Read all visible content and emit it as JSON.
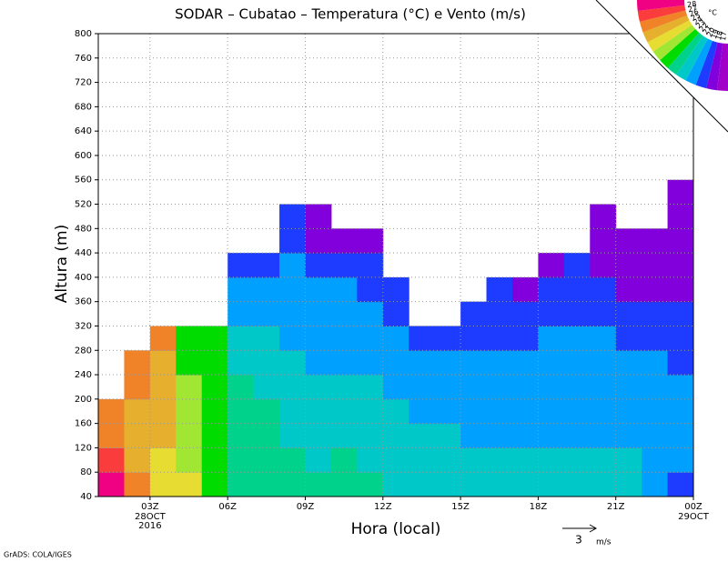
{
  "chart_data": {
    "type": "contour",
    "title": "SODAR – Cubatao – Temperatura (°C) e Vento (m/s)",
    "xlabel": "Hora (local)",
    "ylabel": "Altura (m)",
    "xlim": [
      1,
      24
    ],
    "ylim": [
      40,
      800
    ],
    "xticks": [
      {
        "value": 3,
        "label": "03Z"
      },
      {
        "value": 6,
        "label": "06Z"
      },
      {
        "value": 9,
        "label": "09Z"
      },
      {
        "value": 12,
        "label": "12Z"
      },
      {
        "value": 15,
        "label": "15Z"
      },
      {
        "value": 18,
        "label": "18Z"
      },
      {
        "value": 21,
        "label": "21Z"
      },
      {
        "value": 24,
        "label": "00Z"
      }
    ],
    "xtick_sublabels": [
      {
        "value": 3,
        "lines": [
          "28OCT",
          "2016"
        ]
      },
      {
        "value": 24,
        "lines": [
          "29OCT"
        ]
      }
    ],
    "yticks": [
      40,
      80,
      120,
      160,
      200,
      240,
      280,
      320,
      360,
      400,
      440,
      480,
      520,
      560,
      600,
      640,
      680,
      720,
      760,
      800
    ],
    "grid": true,
    "x": [
      1,
      2,
      3,
      4,
      5,
      6,
      7,
      8,
      9,
      10,
      11,
      12,
      13,
      14,
      15,
      16,
      17,
      18,
      19,
      20,
      21,
      22,
      23
    ],
    "y": [
      40,
      80,
      120,
      160,
      200,
      240,
      280,
      320,
      360,
      400,
      440,
      480,
      520
    ],
    "z": [
      [
        28.2,
        27.2,
        26.5,
        26.2,
        null,
        null,
        null,
        null,
        null,
        null,
        null,
        null,
        null
      ],
      [
        26.2,
        25.8,
        25.4,
        25.6,
        26.2,
        26.5,
        null,
        null,
        null,
        null,
        null,
        null,
        null
      ],
      [
        24.5,
        24.8,
        25.2,
        25.5,
        25.6,
        25.8,
        26.0,
        null,
        null,
        null,
        null,
        null,
        null
      ],
      [
        24.2,
        23.8,
        23.6,
        23.4,
        23.2,
        22.8,
        22.5,
        null,
        null,
        null,
        null,
        null,
        null
      ],
      [
        22.8,
        22.6,
        22.6,
        22.5,
        22.3,
        22.2,
        22.0,
        null,
        null,
        null,
        null,
        null,
        null
      ],
      [
        21.6,
        21.8,
        21.5,
        21.2,
        21.0,
        20.5,
        20.1,
        19.5,
        19.0,
        18.5,
        null,
        null,
        null
      ],
      [
        21.4,
        21.4,
        21.2,
        21.0,
        20.7,
        20.3,
        20.0,
        19.5,
        19.2,
        18.6,
        null,
        null,
        null
      ],
      [
        21.2,
        21.0,
        20.8,
        20.6,
        20.4,
        20.1,
        19.8,
        19.6,
        19.3,
        19.0,
        18.6,
        18.2,
        null
      ],
      [
        21.0,
        20.8,
        20.6,
        20.4,
        20.2,
        19.9,
        19.6,
        19.4,
        19.2,
        18.8,
        17.8,
        17.6,
        null
      ],
      [
        21.2,
        21.0,
        20.6,
        20.4,
        20.1,
        19.8,
        19.6,
        19.3,
        19.0,
        18.6,
        17.8,
        null,
        null
      ],
      [
        21.0,
        20.8,
        20.6,
        20.3,
        20.0,
        19.7,
        19.4,
        19.2,
        18.8,
        18.4,
        17.8,
        null,
        null
      ],
      [
        20.8,
        20.6,
        20.4,
        20.2,
        19.9,
        19.6,
        19.2,
        18.7,
        18.3,
        null,
        null,
        null,
        null
      ],
      [
        20.6,
        20.4,
        20.2,
        19.9,
        19.6,
        19.2,
        18.8,
        null,
        null,
        null,
        null,
        null,
        null
      ],
      [
        20.4,
        20.2,
        20.0,
        19.8,
        19.5,
        19.1,
        18.7,
        null,
        null,
        null,
        null,
        null,
        null
      ],
      [
        20.2,
        20.0,
        19.8,
        19.6,
        19.4,
        19.0,
        18.6,
        18.3,
        null,
        null,
        null,
        null,
        null
      ],
      [
        20.3,
        20.1,
        19.9,
        19.6,
        19.4,
        19.0,
        18.6,
        18.3,
        18.1,
        null,
        null,
        null,
        null
      ],
      [
        20.4,
        20.2,
        19.9,
        19.6,
        19.4,
        19.2,
        18.8,
        18.4,
        17.8,
        null,
        null,
        null,
        null
      ],
      [
        20.3,
        20.0,
        19.8,
        19.6,
        19.4,
        19.3,
        19.0,
        18.6,
        18.2,
        17.8,
        null,
        null,
        null
      ],
      [
        20.2,
        20.0,
        19.8,
        19.6,
        19.5,
        19.4,
        19.2,
        18.8,
        18.4,
        18.1,
        null,
        null,
        null
      ],
      [
        20.3,
        20.0,
        19.8,
        19.6,
        19.5,
        19.3,
        19.1,
        18.7,
        18.3,
        17.8,
        17.6,
        17.4,
        null
      ],
      [
        20.4,
        20.1,
        19.8,
        19.6,
        19.4,
        19.1,
        18.7,
        18.3,
        17.8,
        17.6,
        17.4,
        null,
        null
      ],
      [
        19.9,
        19.8,
        19.6,
        19.5,
        19.3,
        19.0,
        18.6,
        18.2,
        17.8,
        17.6,
        17.4,
        null,
        null
      ],
      [
        18.8,
        19.6,
        19.5,
        19.4,
        19.2,
        18.9,
        18.5,
        18.0,
        17.8,
        17.6,
        17.4,
        17.3,
        17.2
      ]
    ],
    "colorbar": {
      "levels": [
        17,
        18,
        19,
        20,
        21,
        22,
        23,
        24,
        25,
        26,
        27,
        28
      ],
      "colors": [
        "#a000c8",
        "#8200dc",
        "#1e3cff",
        "#00a0ff",
        "#00c8c8",
        "#00d28c",
        "#00dc00",
        "#a0e632",
        "#e6dc32",
        "#e6af2d",
        "#f08228",
        "#fa3c3c",
        "#f00082"
      ],
      "unit": "°C"
    },
    "wind_reference": {
      "value": 3,
      "unit": "m/s"
    },
    "credit": "GrADS: COLA/IGES"
  }
}
